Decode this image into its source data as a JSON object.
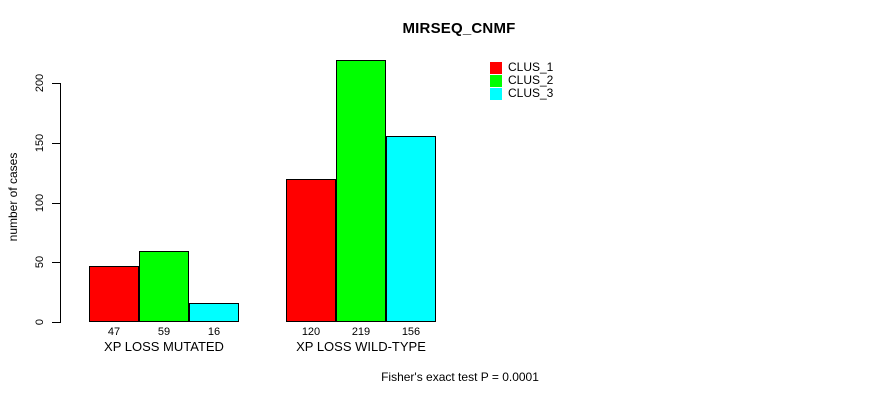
{
  "page": {
    "background": "#ffffff",
    "text_color": "#000000"
  },
  "chart_data": {
    "type": "bar",
    "title": "MIRSEQ_CNMF",
    "xlabel": "",
    "ylabel": "number of cases",
    "categories": [
      "XP LOSS MUTATED",
      "XP LOSS WILD-TYPE"
    ],
    "series": [
      {
        "name": "CLUS_1",
        "color": "#ff0000",
        "values": [
          47,
          120
        ]
      },
      {
        "name": "CLUS_2",
        "color": "#00ff00",
        "values": [
          59,
          219
        ]
      },
      {
        "name": "CLUS_3",
        "color": "#00ffff",
        "values": [
          16,
          156
        ]
      }
    ],
    "yticks": [
      0,
      50,
      100,
      150,
      200
    ],
    "ylim": [
      0,
      220
    ],
    "grid": false,
    "bar_value_labels_shown": true,
    "legend_position": "top-right",
    "legend_entries": [
      "CLUS_1",
      "CLUS_2",
      "CLUS_3"
    ],
    "annotation": "Fisher's exact test P = 0.0001",
    "bar_border_color": "#000000",
    "axis_color": "#000000"
  }
}
